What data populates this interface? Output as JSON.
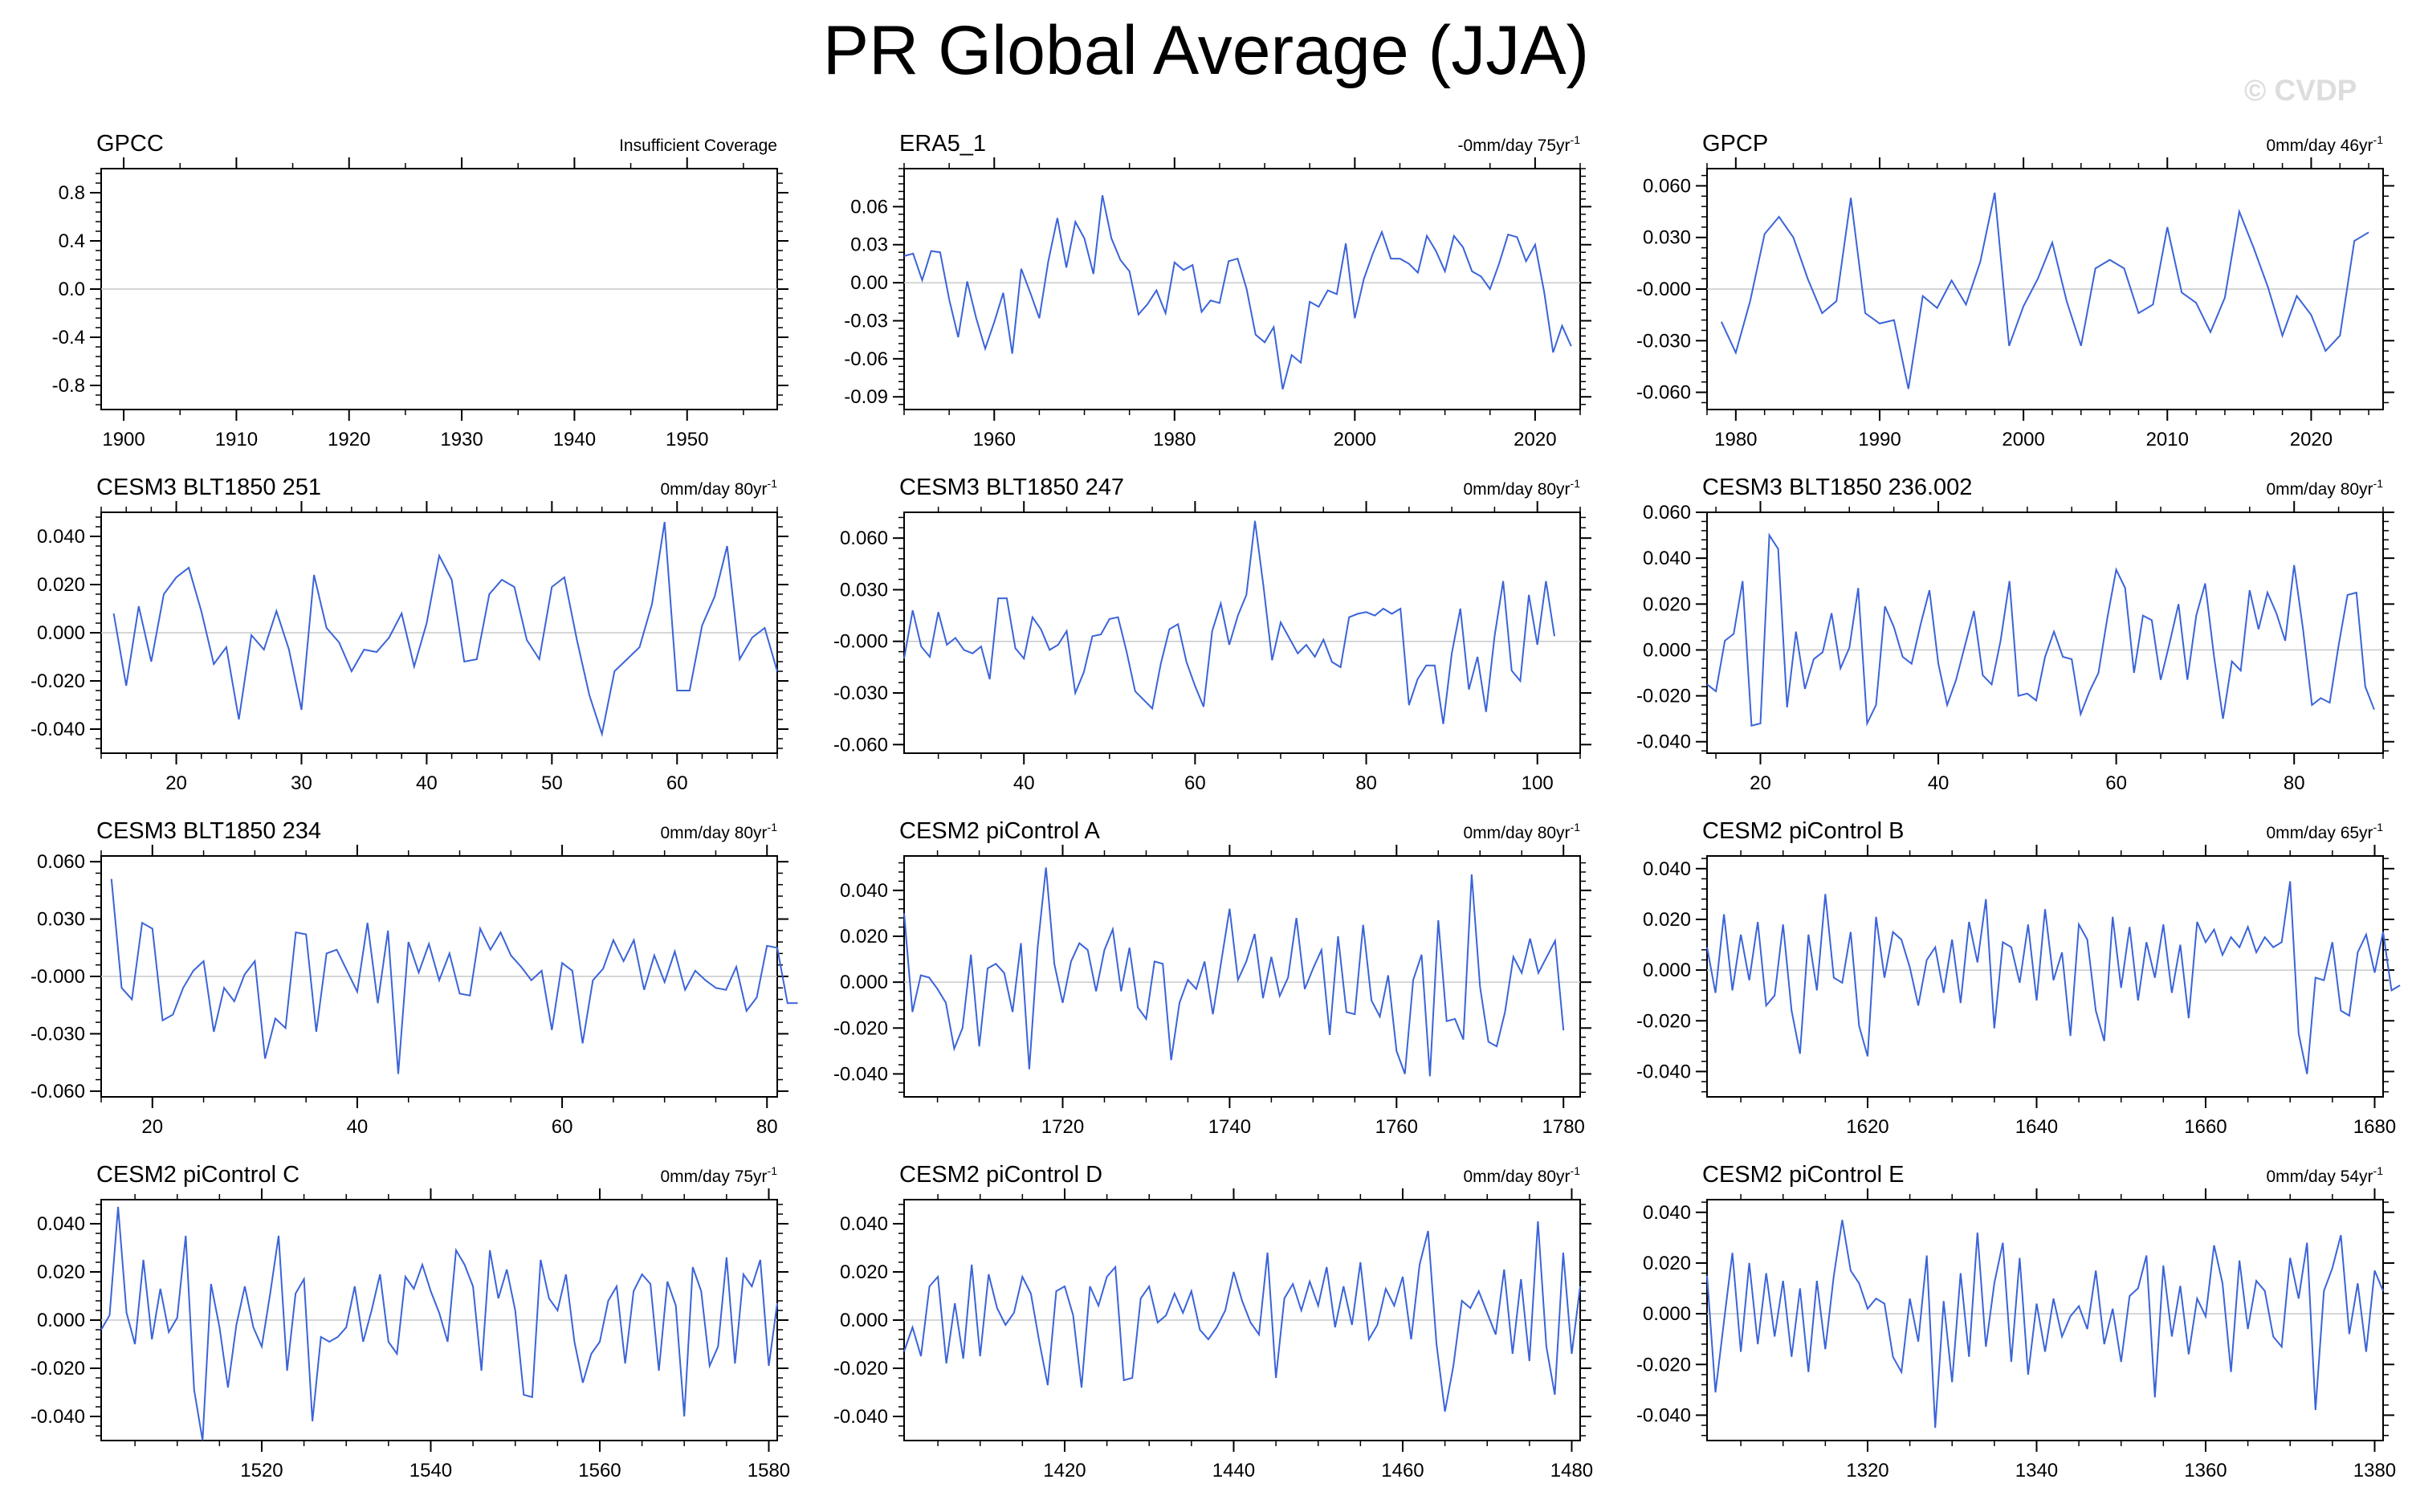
{
  "page": {
    "title": "PR Global Average (JJA)",
    "watermark": "© CVDP"
  },
  "chart_data": [
    {
      "type": "line",
      "title": "GPCC",
      "subtitle": "Insufficient Coverage",
      "xlim": [
        1898,
        1958
      ],
      "ylim": [
        -1.0,
        1.0
      ],
      "xticks": [
        1900,
        1910,
        1920,
        1930,
        1940,
        1950
      ],
      "yticks": [
        0.8,
        0.4,
        0.0,
        -0.4,
        -0.8
      ],
      "ytick_labels": [
        "0.8",
        "0.4",
        "0.0",
        "-0.4",
        "-0.8"
      ],
      "x_start": 1900,
      "values": []
    },
    {
      "type": "line",
      "title": "ERA5_1",
      "subtitle": "-0mm/day 75yr-1",
      "xlim": [
        1950,
        2025
      ],
      "ylim": [
        -0.1,
        0.09
      ],
      "xticks": [
        1960,
        1980,
        2000,
        2020
      ],
      "yticks": [
        0.06,
        0.03,
        0.0,
        -0.03,
        -0.06,
        -0.09
      ],
      "ytick_labels": [
        "0.06",
        "0.03",
        "0.00",
        "-0.03",
        "-0.06",
        "-0.09"
      ],
      "x_start": 1950,
      "values": [
        0.021,
        0.023,
        0.002,
        0.025,
        0.024,
        -0.013,
        -0.043,
        0.001,
        -0.028,
        -0.052,
        -0.031,
        -0.008,
        -0.056,
        0.011,
        -0.008,
        -0.028,
        0.017,
        0.051,
        0.012,
        0.048,
        0.035,
        0.007,
        0.069,
        0.035,
        0.018,
        0.009,
        -0.025,
        -0.017,
        -0.006,
        -0.024,
        0.016,
        0.01,
        0.014,
        -0.023,
        -0.014,
        -0.016,
        0.017,
        0.019,
        -0.005,
        -0.041,
        -0.047,
        -0.035,
        -0.084,
        -0.057,
        -0.063,
        -0.015,
        -0.019,
        -0.006,
        -0.009,
        0.031,
        -0.028,
        0.003,
        0.023,
        0.04,
        0.019,
        0.019,
        0.015,
        0.008,
        0.037,
        0.025,
        0.009,
        0.037,
        0.028,
        0.009,
        0.005,
        -0.005,
        0.015,
        0.038,
        0.036,
        0.017,
        0.03,
        -0.007,
        -0.055,
        -0.034,
        -0.05
      ]
    },
    {
      "type": "line",
      "title": "GPCP",
      "subtitle": "0mm/day 46yr-1",
      "xlim": [
        1978,
        2025
      ],
      "ylim": [
        -0.07,
        0.07
      ],
      "xticks": [
        1980,
        1990,
        2000,
        2010,
        2020
      ],
      "yticks": [
        0.06,
        0.03,
        0.0,
        -0.03,
        -0.06
      ],
      "ytick_labels": [
        "0.060",
        "0.030",
        "-0.000",
        "-0.030",
        "-0.060"
      ],
      "x_start": 1979,
      "values": [
        -0.019,
        -0.037,
        -0.007,
        0.032,
        0.042,
        0.03,
        0.006,
        -0.014,
        -0.007,
        0.053,
        -0.014,
        -0.02,
        -0.018,
        -0.058,
        -0.004,
        -0.011,
        0.005,
        -0.009,
        0.016,
        0.056,
        -0.033,
        -0.01,
        0.006,
        0.027,
        -0.007,
        -0.033,
        0.012,
        0.017,
        0.012,
        -0.014,
        -0.009,
        0.036,
        -0.002,
        -0.008,
        -0.025,
        -0.005,
        0.045,
        0.024,
        0.001,
        -0.027,
        -0.004,
        -0.015,
        -0.036,
        -0.027,
        0.028,
        0.033
      ]
    },
    {
      "type": "line",
      "title": "CESM3 BLT1850 251",
      "subtitle": "0mm/day 80yr-1",
      "xlim": [
        14,
        68
      ],
      "ylim": [
        -0.05,
        0.05
      ],
      "xticks": [
        20,
        30,
        40,
        50,
        60
      ],
      "yticks": [
        0.04,
        0.02,
        0.0,
        -0.02,
        -0.04
      ],
      "ytick_labels": [
        "0.040",
        "0.020",
        "0.000",
        "-0.020",
        "-0.040"
      ],
      "x_start": 15,
      "values": [
        0.008,
        -0.022,
        0.011,
        -0.012,
        0.016,
        0.023,
        0.027,
        0.009,
        -0.013,
        -0.006,
        -0.036,
        -0.001,
        -0.007,
        0.009,
        -0.007,
        -0.032,
        0.024,
        0.002,
        -0.004,
        -0.016,
        -0.007,
        -0.008,
        -0.002,
        0.008,
        -0.014,
        0.004,
        0.032,
        0.022,
        -0.012,
        -0.011,
        0.016,
        0.022,
        0.019,
        -0.003,
        -0.011,
        0.019,
        0.023,
        -0.003,
        -0.026,
        -0.042,
        -0.016,
        -0.011,
        -0.006,
        0.012,
        0.046,
        -0.024,
        -0.024,
        0.003,
        0.015,
        0.036,
        -0.011,
        -0.002,
        0.002,
        -0.016
      ]
    },
    {
      "type": "line",
      "title": "CESM3 BLT1850 247",
      "subtitle": "0mm/day 80yr-1",
      "xlim": [
        26,
        105
      ],
      "ylim": [
        -0.065,
        0.075
      ],
      "xticks": [
        40,
        60,
        80,
        100
      ],
      "yticks": [
        0.06,
        0.03,
        0.0,
        -0.03,
        -0.06
      ],
      "ytick_labels": [
        "0.060",
        "0.030",
        "-0.000",
        "-0.030",
        "-0.060"
      ],
      "x_start": 26,
      "values": [
        -0.01,
        0.018,
        -0.003,
        -0.009,
        0.017,
        -0.002,
        0.002,
        -0.005,
        -0.007,
        -0.003,
        -0.022,
        0.025,
        0.025,
        -0.004,
        -0.01,
        0.014,
        0.007,
        -0.005,
        -0.002,
        0.006,
        -0.03,
        -0.018,
        0.003,
        0.004,
        0.013,
        0.014,
        -0.006,
        -0.029,
        -0.034,
        -0.039,
        -0.013,
        0.007,
        0.01,
        -0.012,
        -0.026,
        -0.038,
        0.006,
        0.022,
        -0.002,
        0.015,
        0.027,
        0.07,
        0.032,
        -0.011,
        0.011,
        0.002,
        -0.007,
        -0.002,
        -0.009,
        0.001,
        -0.012,
        -0.015,
        0.014,
        0.016,
        0.017,
        0.015,
        0.019,
        0.016,
        0.019,
        -0.037,
        -0.022,
        -0.014,
        -0.014,
        -0.048,
        -0.007,
        0.019,
        -0.028,
        -0.009,
        -0.041,
        0.003,
        0.035,
        -0.017,
        -0.023,
        0.027,
        -0.002,
        0.035,
        0.003
      ]
    },
    {
      "type": "line",
      "title": "CESM3 BLT1850 236.002",
      "subtitle": "0mm/day 80yr-1",
      "xlim": [
        14,
        90
      ],
      "ylim": [
        -0.045,
        0.06
      ],
      "xticks": [
        20,
        40,
        60,
        80
      ],
      "yticks": [
        0.06,
        0.04,
        0.02,
        0.0,
        -0.02,
        -0.04
      ],
      "ytick_labels": [
        "0.060",
        "0.040",
        "0.020",
        "0.000",
        "-0.020",
        "-0.040"
      ],
      "x_start": 14,
      "values": [
        -0.015,
        -0.018,
        0.004,
        0.007,
        0.03,
        -0.033,
        -0.032,
        0.05,
        0.044,
        -0.025,
        0.008,
        -0.017,
        -0.004,
        -0.001,
        0.016,
        -0.008,
        0.001,
        0.027,
        -0.032,
        -0.024,
        0.019,
        0.01,
        -0.003,
        -0.006,
        0.011,
        0.026,
        -0.006,
        -0.024,
        -0.013,
        0.002,
        0.017,
        -0.011,
        -0.015,
        0.004,
        0.03,
        -0.02,
        -0.019,
        -0.022,
        -0.003,
        0.008,
        -0.003,
        -0.004,
        -0.028,
        -0.018,
        -0.01,
        0.014,
        0.035,
        0.027,
        -0.01,
        0.015,
        0.013,
        -0.013,
        0.003,
        0.02,
        -0.013,
        0.015,
        0.029,
        -0.003,
        -0.03,
        -0.005,
        -0.009,
        0.026,
        0.009,
        0.025,
        0.016,
        0.004,
        0.037,
        0.009,
        -0.024,
        -0.021,
        -0.023,
        0.002,
        0.024,
        0.025,
        -0.016,
        -0.026
      ]
    },
    {
      "type": "line",
      "title": "CESM3 BLT1850 234",
      "subtitle": "0mm/day 80yr-1",
      "xlim": [
        15,
        81
      ],
      "ylim": [
        -0.063,
        0.063
      ],
      "xticks": [
        20,
        40,
        60,
        80
      ],
      "yticks": [
        0.06,
        0.03,
        0.0,
        -0.03,
        -0.06
      ],
      "ytick_labels": [
        "0.060",
        "0.030",
        "-0.000",
        "-0.030",
        "-0.060"
      ],
      "x_start": 16,
      "values": [
        0.051,
        -0.006,
        -0.012,
        0.028,
        0.025,
        -0.023,
        -0.02,
        -0.006,
        0.003,
        0.008,
        -0.029,
        -0.006,
        -0.013,
        0.001,
        0.008,
        -0.043,
        -0.022,
        -0.027,
        0.023,
        0.022,
        -0.029,
        0.012,
        0.014,
        0.003,
        -0.008,
        0.028,
        -0.014,
        0.024,
        -0.051,
        0.018,
        0.002,
        0.017,
        -0.002,
        0.012,
        -0.009,
        -0.01,
        0.025,
        0.014,
        0.023,
        0.011,
        0.005,
        -0.002,
        0.003,
        -0.028,
        0.007,
        0.003,
        -0.035,
        -0.002,
        0.004,
        0.019,
        0.008,
        0.019,
        -0.007,
        0.011,
        -0.003,
        0.013,
        -0.007,
        0.003,
        -0.002,
        -0.006,
        -0.007,
        0.005,
        -0.018,
        -0.011,
        0.016,
        0.015,
        -0.014,
        -0.014
      ]
    },
    {
      "type": "line",
      "title": "CESM2 piControl A",
      "subtitle": "0mm/day 80yr-1",
      "xlim": [
        1701,
        1782
      ],
      "ylim": [
        -0.05,
        0.055
      ],
      "xticks": [
        1720,
        1740,
        1760,
        1780
      ],
      "yticks": [
        0.04,
        0.02,
        0.0,
        -0.02,
        -0.04
      ],
      "ytick_labels": [
        "0.040",
        "0.020",
        "0.000",
        "-0.020",
        "-0.040"
      ],
      "x_start": 1701,
      "values": [
        0.03,
        -0.013,
        0.003,
        0.002,
        -0.003,
        -0.009,
        -0.029,
        -0.02,
        0.012,
        -0.028,
        0.006,
        0.008,
        0.004,
        -0.013,
        0.017,
        -0.038,
        0.015,
        0.05,
        0.008,
        -0.009,
        0.009,
        0.017,
        0.014,
        -0.004,
        0.014,
        0.023,
        -0.004,
        0.015,
        -0.011,
        -0.016,
        0.009,
        0.008,
        -0.034,
        -0.009,
        0.001,
        -0.003,
        0.009,
        -0.014,
        0.009,
        0.032,
        0.001,
        0.009,
        0.021,
        -0.007,
        0.011,
        -0.006,
        0.002,
        0.028,
        -0.003,
        0.006,
        0.014,
        -0.023,
        0.02,
        -0.013,
        -0.014,
        0.025,
        -0.008,
        -0.015,
        0.003,
        -0.03,
        -0.04,
        0.001,
        0.012,
        -0.041,
        0.027,
        -0.017,
        -0.016,
        -0.025,
        0.047,
        -0.002,
        -0.026,
        -0.028,
        -0.013,
        0.011,
        0.004,
        0.019,
        0.004,
        0.011,
        0.018,
        -0.021
      ]
    },
    {
      "type": "line",
      "title": "CESM2 piControl B",
      "subtitle": "0mm/day 65yr-1",
      "xlim": [
        1601,
        1681
      ],
      "ylim": [
        -0.05,
        0.045
      ],
      "xticks": [
        1620,
        1640,
        1660,
        1680
      ],
      "yticks": [
        0.04,
        0.02,
        0.0,
        -0.02,
        -0.04
      ],
      "ytick_labels": [
        "0.040",
        "0.020",
        "0.000",
        "-0.020",
        "-0.040"
      ],
      "x_start": 1601,
      "values": [
        0.009,
        -0.009,
        0.022,
        -0.008,
        0.014,
        -0.004,
        0.019,
        -0.014,
        -0.01,
        0.018,
        -0.016,
        -0.033,
        0.014,
        -0.008,
        0.03,
        -0.003,
        -0.005,
        0.015,
        -0.022,
        -0.034,
        0.021,
        -0.003,
        0.015,
        0.012,
        0.001,
        -0.014,
        0.004,
        0.009,
        -0.009,
        0.012,
        -0.013,
        0.019,
        0.003,
        0.028,
        -0.023,
        0.011,
        0.009,
        -0.005,
        0.018,
        -0.012,
        0.024,
        -0.004,
        0.007,
        -0.026,
        0.018,
        0.012,
        -0.016,
        -0.028,
        0.021,
        -0.007,
        0.017,
        -0.012,
        0.011,
        -0.003,
        0.018,
        -0.009,
        0.01,
        -0.019,
        0.019,
        0.011,
        0.016,
        0.006,
        0.013,
        0.009,
        0.017,
        0.007,
        0.013,
        0.009,
        0.011,
        0.035,
        -0.025,
        -0.041,
        -0.003,
        -0.004,
        0.011,
        -0.016,
        -0.018,
        0.007,
        0.014,
        -0.001,
        0.015,
        -0.008,
        -0.006
      ]
    },
    {
      "type": "line",
      "title": "CESM2 piControl C",
      "subtitle": "0mm/day 75yr-1",
      "xlim": [
        1501,
        1581
      ],
      "ylim": [
        -0.05,
        0.05
      ],
      "xticks": [
        1520,
        1540,
        1560,
        1580
      ],
      "yticks": [
        0.04,
        0.02,
        0.0,
        -0.02,
        -0.04
      ],
      "ytick_labels": [
        "0.040",
        "0.020",
        "0.000",
        "-0.020",
        "-0.040"
      ],
      "x_start": 1501,
      "values": [
        -0.004,
        0.002,
        0.047,
        0.003,
        -0.01,
        0.025,
        -0.008,
        0.013,
        -0.005,
        0.001,
        0.035,
        -0.029,
        -0.05,
        0.015,
        -0.003,
        -0.028,
        -0.002,
        0.014,
        -0.003,
        -0.011,
        0.011,
        0.035,
        -0.021,
        0.011,
        0.017,
        -0.042,
        -0.007,
        -0.009,
        -0.007,
        -0.003,
        0.014,
        -0.009,
        0.004,
        0.019,
        -0.009,
        -0.014,
        0.018,
        0.013,
        0.023,
        0.012,
        0.003,
        -0.009,
        0.029,
        0.023,
        0.014,
        -0.021,
        0.029,
        0.009,
        0.021,
        0.004,
        -0.031,
        -0.032,
        0.025,
        0.009,
        0.004,
        0.019,
        -0.009,
        -0.026,
        -0.014,
        -0.009,
        0.008,
        0.014,
        -0.018,
        0.012,
        0.019,
        0.015,
        -0.021,
        0.016,
        0.006,
        -0.04,
        0.022,
        0.012,
        -0.019,
        -0.011,
        0.026,
        -0.018,
        0.019,
        0.014,
        0.025,
        -0.019,
        0.007
      ]
    },
    {
      "type": "line",
      "title": "CESM2 piControl D",
      "subtitle": "0mm/day 80yr-1",
      "xlim": [
        1401,
        1481
      ],
      "ylim": [
        -0.05,
        0.05
      ],
      "xticks": [
        1420,
        1440,
        1460,
        1480
      ],
      "yticks": [
        0.04,
        0.02,
        0.0,
        -0.02,
        -0.04
      ],
      "ytick_labels": [
        "0.040",
        "0.020",
        "0.000",
        "-0.020",
        "-0.040"
      ],
      "x_start": 1401,
      "values": [
        -0.013,
        -0.003,
        -0.015,
        0.014,
        0.018,
        -0.018,
        0.007,
        -0.016,
        0.023,
        -0.015,
        0.019,
        0.005,
        -0.002,
        0.003,
        0.018,
        0.011,
        -0.009,
        -0.027,
        0.012,
        0.014,
        0.002,
        -0.028,
        0.014,
        0.006,
        0.018,
        0.022,
        -0.025,
        -0.024,
        0.009,
        0.014,
        -0.001,
        0.002,
        0.011,
        0.003,
        0.012,
        -0.004,
        -0.008,
        -0.003,
        0.004,
        0.02,
        0.008,
        -0.001,
        -0.006,
        0.028,
        -0.024,
        0.009,
        0.015,
        0.004,
        0.016,
        0.006,
        0.022,
        -0.003,
        0.014,
        -0.002,
        0.024,
        -0.008,
        -0.002,
        0.013,
        0.006,
        0.018,
        -0.008,
        0.023,
        0.037,
        -0.01,
        -0.038,
        -0.019,
        0.008,
        0.005,
        0.012,
        0.003,
        -0.006,
        0.021,
        -0.014,
        0.017,
        -0.017,
        0.041,
        -0.011,
        -0.031,
        0.028,
        -0.014,
        0.014
      ]
    },
    {
      "type": "line",
      "title": "CESM2 piControl E",
      "subtitle": "0mm/day 54yr-1",
      "xlim": [
        1301,
        1381
      ],
      "ylim": [
        -0.05,
        0.045
      ],
      "xticks": [
        1320,
        1340,
        1360,
        1380
      ],
      "yticks": [
        0.04,
        0.02,
        0.0,
        -0.02,
        -0.04
      ],
      "ytick_labels": [
        "0.040",
        "0.020",
        "0.000",
        "-0.020",
        "-0.040"
      ],
      "x_start": 1301,
      "values": [
        0.015,
        -0.031,
        -0.003,
        0.024,
        -0.015,
        0.02,
        -0.012,
        0.016,
        -0.009,
        0.013,
        -0.017,
        0.01,
        -0.023,
        0.013,
        -0.014,
        0.015,
        0.037,
        0.017,
        0.012,
        0.002,
        0.006,
        0.004,
        -0.017,
        -0.023,
        0.006,
        -0.011,
        0.023,
        -0.045,
        0.005,
        -0.027,
        0.016,
        -0.017,
        0.032,
        -0.013,
        0.012,
        0.028,
        -0.019,
        0.022,
        -0.024,
        0.004,
        -0.015,
        0.006,
        -0.009,
        -0.001,
        0.003,
        -0.006,
        0.017,
        -0.012,
        0.002,
        -0.019,
        0.007,
        0.01,
        0.023,
        -0.033,
        0.019,
        -0.009,
        0.011,
        -0.016,
        0.006,
        -0.001,
        0.027,
        0.012,
        -0.023,
        0.021,
        -0.006,
        0.013,
        0.009,
        -0.009,
        -0.013,
        0.022,
        0.006,
        0.028,
        -0.038,
        0.009,
        0.018,
        0.031,
        -0.008,
        0.012,
        -0.015,
        0.017,
        0.009
      ]
    }
  ]
}
